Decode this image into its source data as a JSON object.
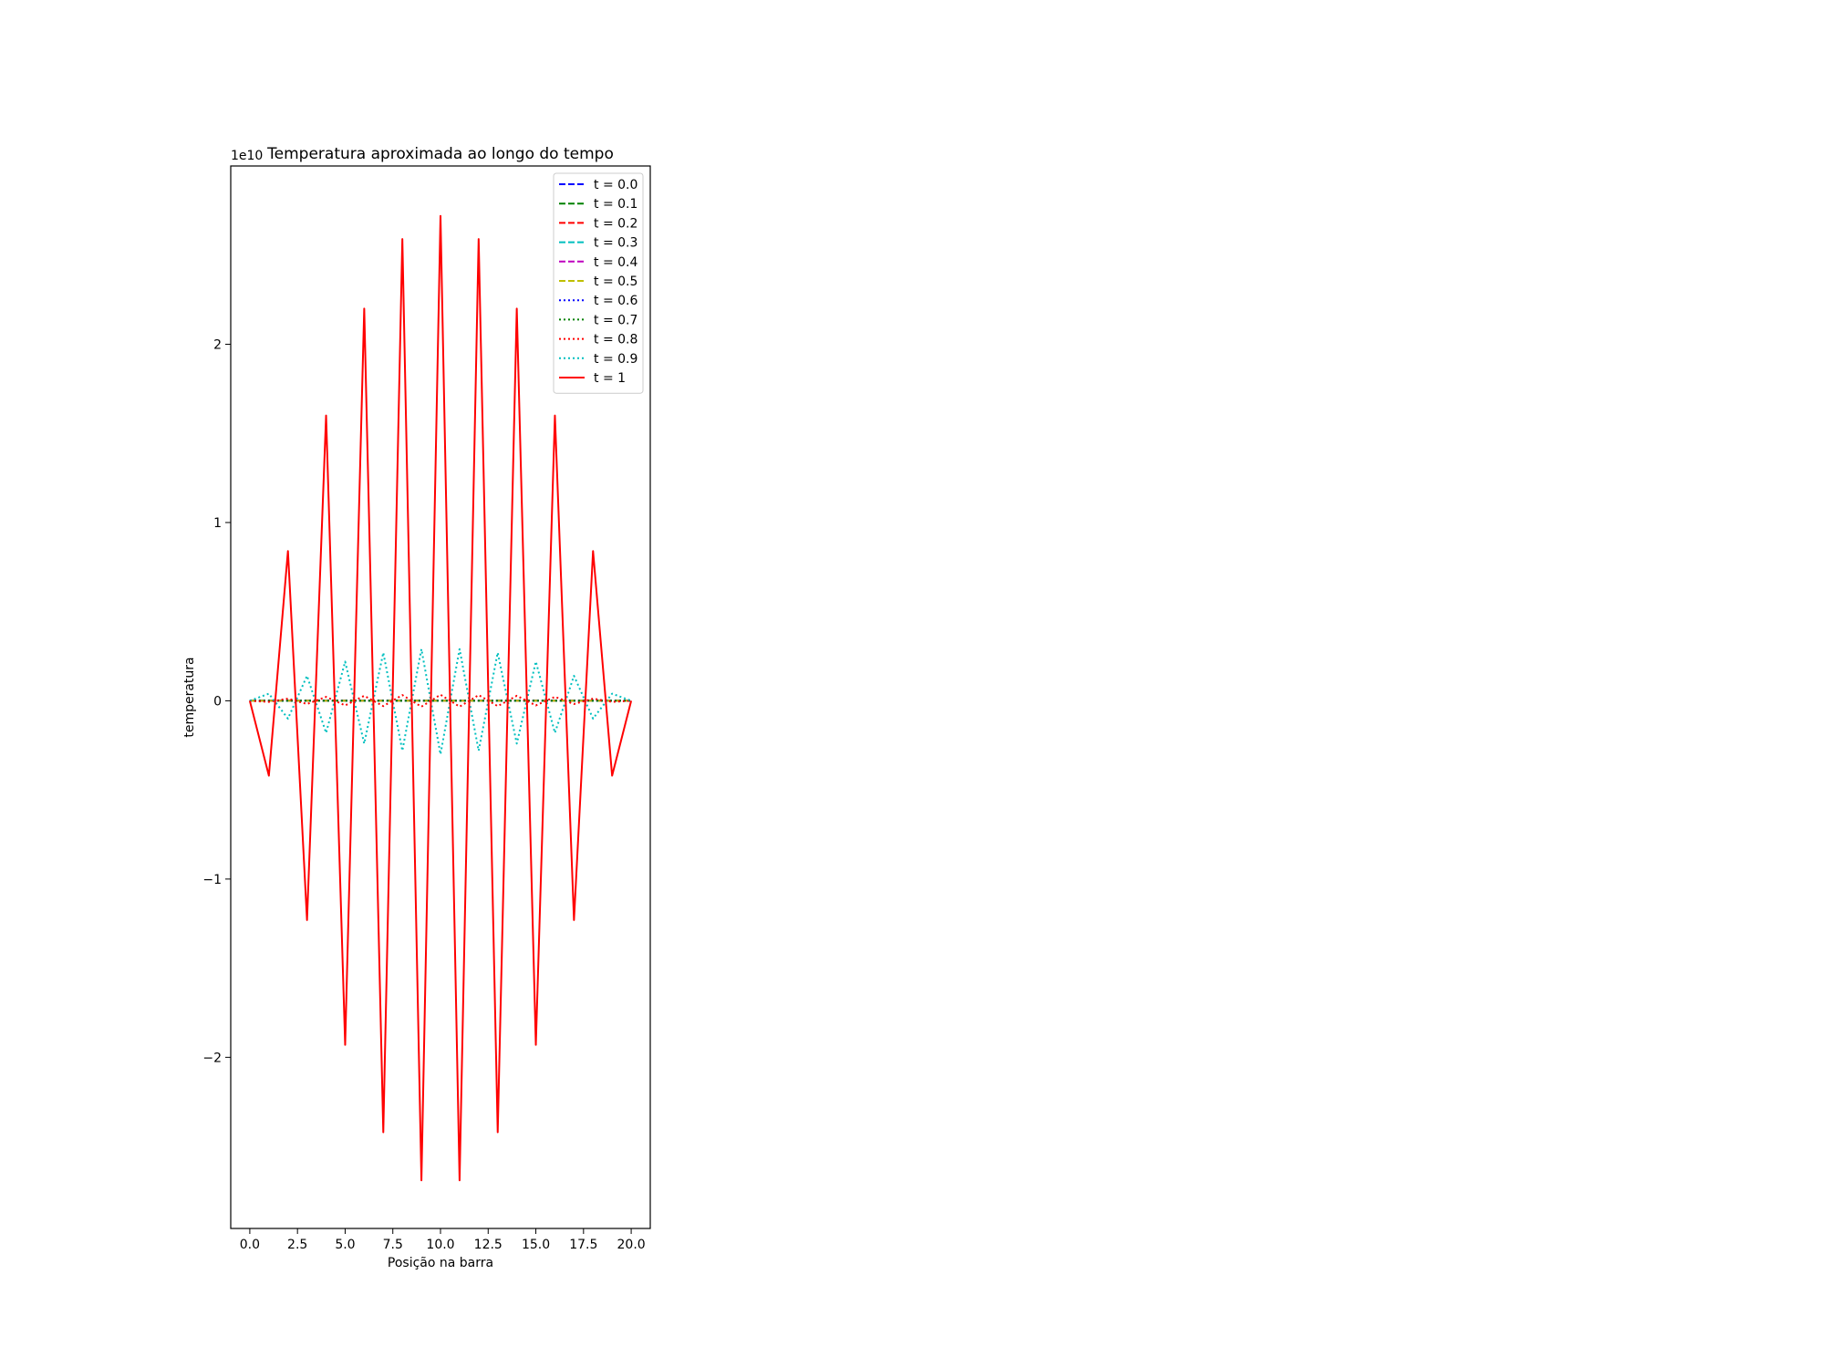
{
  "chart_data": {
    "type": "line",
    "title": "Temperatura aproximada ao longo do tempo",
    "xlabel": "Posição na barra",
    "ylabel": "temperatura",
    "y_offset_label": "1e10",
    "y_scale_factor": 10000000000,
    "xlim": [
      -1,
      21
    ],
    "ylim": [
      -2.96,
      3.0
    ],
    "x_ticks": [
      0,
      2.5,
      5,
      7.5,
      10,
      12.5,
      15,
      17.5,
      20
    ],
    "x_tick_labels": [
      "0.0",
      "2.5",
      "5.0",
      "7.5",
      "10.0",
      "12.5",
      "15.0",
      "17.5",
      "20.0"
    ],
    "y_ticks": [
      -2,
      -1,
      0,
      1,
      2
    ],
    "y_tick_labels": [
      "−2",
      "−1",
      "0",
      "1",
      "2"
    ],
    "grid": false,
    "legend_position": "top-right",
    "x": [
      0,
      1,
      2,
      3,
      4,
      5,
      6,
      7,
      8,
      9,
      10,
      11,
      12,
      13,
      14,
      15,
      16,
      17,
      18,
      19,
      20
    ],
    "series": [
      {
        "name": "t = 0.0",
        "color": "#0000ff",
        "dash": "dashed",
        "values": [
          0,
          0,
          0,
          0,
          0,
          0,
          0,
          0,
          0,
          0,
          0,
          0,
          0,
          0,
          0,
          0,
          0,
          0,
          0,
          0,
          0
        ]
      },
      {
        "name": "t = 0.1",
        "color": "#008000",
        "dash": "dashed",
        "values": [
          0,
          0,
          0,
          0,
          0,
          0,
          0,
          0,
          0,
          0,
          0,
          0,
          0,
          0,
          0,
          0,
          0,
          0,
          0,
          0,
          0
        ]
      },
      {
        "name": "t = 0.2",
        "color": "#ff0000",
        "dash": "dashed",
        "values": [
          0,
          0,
          0,
          0,
          0,
          0,
          0,
          0,
          0,
          0,
          0,
          0,
          0,
          0,
          0,
          0,
          0,
          0,
          0,
          0,
          0
        ]
      },
      {
        "name": "t = 0.3",
        "color": "#00bfbf",
        "dash": "dashed",
        "values": [
          0,
          0,
          0,
          0,
          0,
          0,
          0,
          0,
          0,
          0,
          0,
          0,
          0,
          0,
          0,
          0,
          0,
          0,
          0,
          0,
          0
        ]
      },
      {
        "name": "t = 0.4",
        "color": "#bf00bf",
        "dash": "dashed",
        "values": [
          0,
          0,
          0,
          0,
          0,
          0,
          0,
          0,
          0,
          0,
          0,
          0,
          0,
          0,
          0,
          0,
          0,
          0,
          0,
          0,
          0
        ]
      },
      {
        "name": "t = 0.5",
        "color": "#bfbf00",
        "dash": "dashed",
        "values": [
          0,
          0,
          0,
          0,
          0,
          0,
          0,
          0,
          0,
          0,
          0,
          0,
          0,
          0,
          0,
          0,
          0,
          0,
          0,
          0,
          0
        ]
      },
      {
        "name": "t = 0.6",
        "color": "#0000ff",
        "dash": "dotted",
        "values": [
          0,
          0,
          0,
          0,
          0,
          0,
          0,
          0,
          0,
          0,
          0,
          0,
          0,
          0,
          0,
          0,
          0,
          0,
          0,
          0,
          0
        ]
      },
      {
        "name": "t = 0.7",
        "color": "#008000",
        "dash": "dotted",
        "values": [
          0,
          0,
          0,
          0,
          0,
          0,
          0,
          0,
          0,
          0,
          0,
          0,
          0,
          0,
          0,
          0,
          0,
          0,
          0,
          0,
          0
        ]
      },
      {
        "name": "t = 0.8",
        "color": "#ff0000",
        "dash": "dotted",
        "values": [
          0,
          -0.006,
          0.012,
          -0.018,
          0.022,
          -0.026,
          0.028,
          -0.03,
          0.032,
          -0.033,
          0.034,
          -0.033,
          0.032,
          -0.03,
          0.028,
          -0.026,
          0.022,
          -0.018,
          0.012,
          -0.006,
          0
        ]
      },
      {
        "name": "t = 0.9",
        "color": "#00bfbf",
        "dash": "dotted",
        "values": [
          0,
          0.04,
          -0.1,
          0.14,
          -0.18,
          0.22,
          -0.24,
          0.27,
          -0.28,
          0.29,
          -0.3,
          0.29,
          -0.28,
          0.27,
          -0.24,
          0.22,
          -0.18,
          0.14,
          -0.1,
          0.04,
          0
        ]
      },
      {
        "name": "t = 1",
        "color": "#ff0000",
        "dash": "solid",
        "values": [
          0,
          -0.42,
          0.84,
          -1.23,
          1.6,
          -1.93,
          2.2,
          -2.42,
          2.59,
          -2.69,
          2.72,
          -2.69,
          2.59,
          -2.42,
          2.2,
          -1.93,
          1.6,
          -1.23,
          0.84,
          -0.42,
          0
        ]
      }
    ]
  }
}
